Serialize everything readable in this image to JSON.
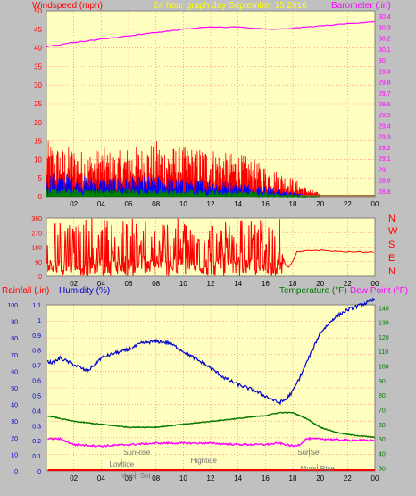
{
  "header": {
    "windspeed_label": "Windspeed (mph)",
    "period_label": "24 hour graph day  September 15 2016",
    "barometer_label": "Barometer (.in)"
  },
  "bottom_header": {
    "rainfall_label": "Rainfall (.in)",
    "humidity_label": "Humidity (%)",
    "temperature_label": "Temperature (°F)",
    "dewpoint_label": "Dew Point (°F)"
  },
  "direction_labels": [
    "N",
    "W",
    "S",
    "E",
    "N"
  ],
  "colors": {
    "plot_bg": "#ffffc0",
    "frame_bg": "#c0c0c0",
    "grid": "#ff7070",
    "wind": "#ff0000",
    "wind_avg": "#0000ff",
    "wind_low": "#008000",
    "barometer": "#ff00ff",
    "humidity": "#0000cc",
    "temperature": "#007700",
    "dewpoint": "#ff00ff",
    "rain": "#ff0000"
  },
  "chart_data": [
    {
      "type": "line",
      "x_ticks": [
        "02",
        "04",
        "06",
        "08",
        "10",
        "12",
        "14",
        "16",
        "18",
        "20",
        "22",
        "00"
      ],
      "y_left_ticks": [
        "0",
        "5",
        "10",
        "15",
        "20",
        "25",
        "30",
        "35",
        "40",
        "45",
        "50"
      ],
      "y_left_range": [
        0,
        50
      ],
      "y_right_ticks": [
        "28.8",
        "28.9",
        "29",
        "29.1",
        "29.2",
        "29.3",
        "29.4",
        "29.5",
        "29.6",
        "29.7",
        "29.8",
        "29.9",
        "30",
        "30.1",
        "30.2",
        "30.3",
        "30.4"
      ],
      "y_right_range": [
        28.75,
        30.45
      ],
      "series": [
        {
          "name": "Barometer",
          "axis": "right",
          "x": [
            0,
            2,
            4,
            6,
            8,
            10,
            12,
            14,
            16,
            17,
            18,
            20,
            22,
            24
          ],
          "y": [
            30.12,
            30.16,
            30.19,
            30.22,
            30.25,
            30.28,
            30.3,
            30.3,
            30.28,
            30.28,
            30.29,
            30.31,
            30.33,
            30.35
          ]
        },
        {
          "name": "Wind gust",
          "axis": "left",
          "x": [
            0,
            1,
            2,
            3,
            4,
            5,
            6,
            7,
            8,
            9,
            10,
            11,
            12,
            13,
            14,
            15,
            16,
            17,
            18,
            19,
            20
          ],
          "y": [
            9,
            8,
            8,
            7,
            8,
            7,
            8,
            8,
            9,
            8,
            8,
            8,
            8,
            7,
            7,
            6,
            5,
            4,
            3,
            1.5,
            0.5
          ]
        },
        {
          "name": "Wind average",
          "axis": "left",
          "x": [
            0,
            2,
            4,
            6,
            8,
            10,
            12,
            14,
            16,
            17,
            18,
            19,
            20
          ],
          "y": [
            4.5,
            4,
            3.5,
            3.5,
            3.8,
            3.2,
            3,
            2.6,
            2,
            1.3,
            0.8,
            0.4,
            0
          ]
        },
        {
          "name": "Wind low",
          "axis": "left",
          "x": [
            0,
            4,
            8,
            12,
            16,
            18,
            20
          ],
          "y": [
            1.5,
            1.5,
            1.4,
            1.2,
            0.9,
            0.4,
            0
          ]
        }
      ]
    },
    {
      "type": "line",
      "x_ticks": [
        "02",
        "04",
        "06",
        "08",
        "10",
        "12",
        "14",
        "16",
        "18",
        "20",
        "22",
        "00"
      ],
      "y_ticks": [
        "0",
        "90",
        "180",
        "270",
        "360"
      ],
      "y_range": [
        0,
        360
      ],
      "series": [
        {
          "name": "Wind direction",
          "x": [
            0,
            17,
            17.6,
            18,
            18.3,
            18.6,
            19,
            20,
            22,
            24
          ],
          "y": [
            180,
            180,
            40,
            90,
            150,
            150,
            160,
            160,
            150,
            150
          ]
        }
      ]
    },
    {
      "type": "line",
      "x_ticks": [
        "02",
        "04",
        "06",
        "08",
        "10",
        "12",
        "14",
        "16",
        "18",
        "20",
        "22",
        "00"
      ],
      "rain_ticks": [
        "0",
        "0.1",
        "0.2",
        "0.3",
        "0.4",
        "0.5",
        "0.6",
        "0.7",
        "0.8",
        "0.9",
        "1",
        "1.1"
      ],
      "rain_range": [
        0,
        1.1
      ],
      "humidity_ticks": [
        "0",
        "10",
        "20",
        "30",
        "40",
        "50",
        "60",
        "70",
        "80",
        "90",
        "100"
      ],
      "humidity_range": [
        0,
        100
      ],
      "temp_ticks": [
        "30",
        "40",
        "50",
        "60",
        "70",
        "80",
        "90",
        "100",
        "110",
        "120",
        "130",
        "140"
      ],
      "temp_range": [
        28,
        142
      ],
      "annotations": [
        {
          "text": "SunRise",
          "x": 6.6
        },
        {
          "text": "Lowtide",
          "x": 5.5
        },
        {
          "text": "Moon Set",
          "x": 6.5
        },
        {
          "text": "Hightide",
          "x": 11.5
        },
        {
          "text": "SunSet",
          "x": 19.2
        },
        {
          "text": "Moon Rise",
          "x": 19.8
        }
      ],
      "series": [
        {
          "name": "Humidity",
          "axis": "humidity",
          "x": [
            0,
            0.5,
            1,
            2,
            3,
            4,
            5,
            6,
            7,
            8,
            9,
            10,
            11,
            12,
            13,
            14,
            15,
            16,
            17,
            17.5,
            18,
            18.5,
            19,
            20,
            21,
            22,
            23,
            24
          ],
          "y": [
            66,
            65,
            68,
            64,
            60,
            68,
            71,
            73,
            77,
            78,
            77,
            72,
            67,
            62,
            56,
            52,
            49,
            45,
            41,
            43,
            48,
            56,
            65,
            83,
            92,
            97,
            100,
            103
          ]
        },
        {
          "name": "Temperature",
          "axis": "temp",
          "x": [
            0,
            2,
            4,
            6,
            8,
            10,
            12,
            14,
            16,
            17,
            18,
            19,
            20,
            21,
            22,
            23,
            24
          ],
          "y": [
            66,
            62,
            60,
            58,
            58,
            60,
            62,
            64,
            66,
            68,
            68,
            64,
            58,
            55,
            53,
            52,
            51
          ]
        },
        {
          "name": "Dew Point",
          "axis": "temp",
          "x": [
            0,
            1,
            2,
            4,
            6,
            8,
            10,
            12,
            14,
            16,
            17,
            17.5,
            18,
            18.5,
            19,
            20,
            22,
            24
          ],
          "y": [
            50,
            50,
            46,
            45,
            46,
            47,
            47,
            47,
            46,
            46,
            47,
            46,
            45,
            46,
            50,
            50,
            49,
            49
          ]
        },
        {
          "name": "Rainfall",
          "axis": "rain",
          "x": [
            0,
            24
          ],
          "y": [
            0,
            0
          ]
        }
      ]
    }
  ]
}
